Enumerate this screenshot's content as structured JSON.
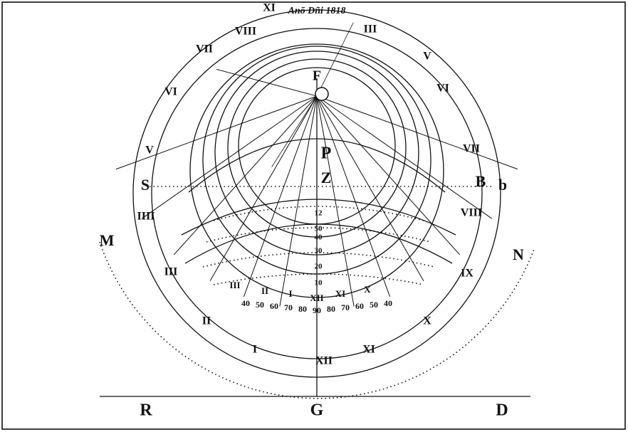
{
  "header": {
    "inscription": "Anō Dñi 1818"
  },
  "points": {
    "F": "F",
    "P": "P",
    "Z": "Z",
    "S": "S",
    "B": "B",
    "b": "b",
    "M": "M",
    "N": "N",
    "R": "R",
    "G": "G",
    "D": "D"
  },
  "outer_hours": [
    "XII",
    "I",
    "II",
    "III",
    "IIII",
    "V",
    "VI",
    "VII",
    "VIII",
    "XI",
    "III",
    "V",
    "VI",
    "VII",
    "VIII",
    "IX",
    "X",
    "XI"
  ],
  "inner_hours": [
    "III",
    "II",
    "I",
    "XII",
    "XI",
    "X"
  ],
  "altitude_scale": [
    "40",
    "50",
    "60",
    "70",
    "80",
    "90",
    "80",
    "70",
    "60",
    "50",
    "40"
  ],
  "center_scale": [
    "12",
    "50",
    "40",
    "30",
    "20",
    "10"
  ]
}
